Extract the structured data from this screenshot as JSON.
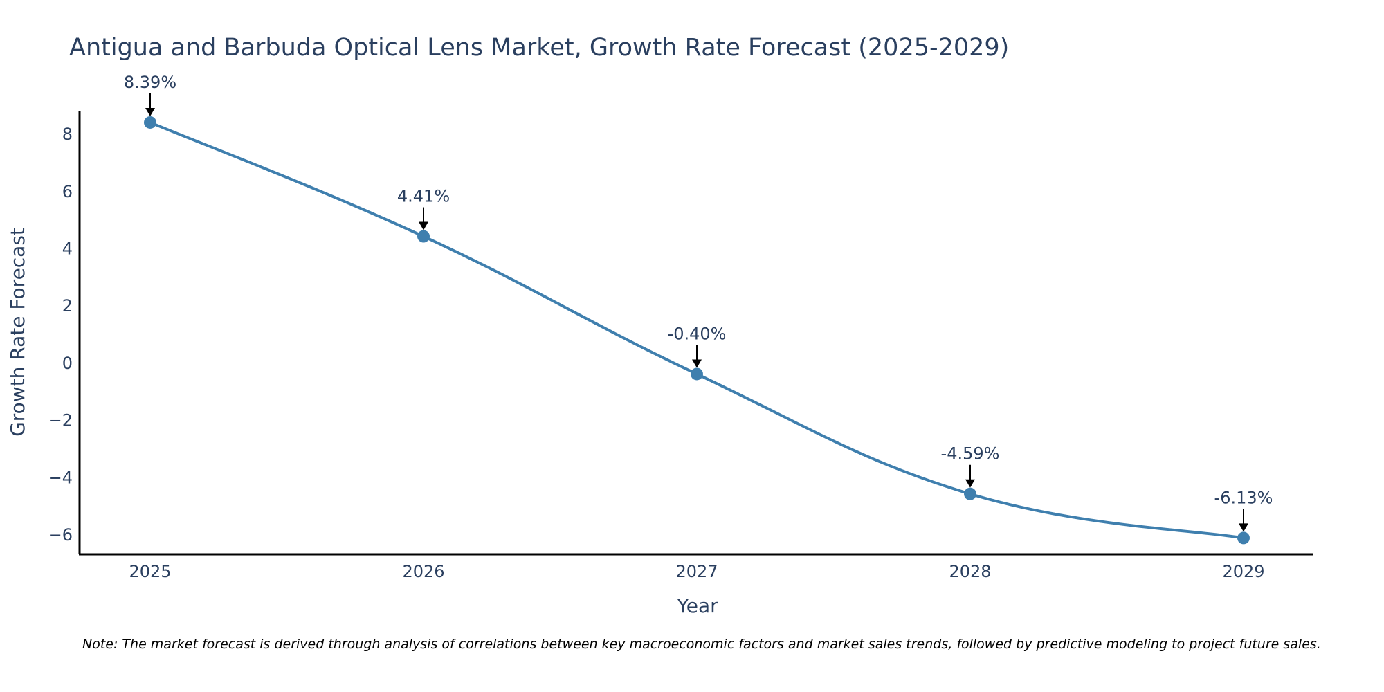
{
  "chart_data": {
    "type": "line",
    "title": "Antigua and Barbuda Optical Lens Market, Growth Rate Forecast (2025-2029)",
    "xlabel": "Year",
    "ylabel": "Growth Rate Forecast",
    "categories": [
      "2025",
      "2026",
      "2027",
      "2028",
      "2029"
    ],
    "series": [
      {
        "name": "Growth Rate Forecast",
        "values": [
          8.39,
          4.41,
          -0.4,
          -4.59,
          -6.13
        ]
      }
    ],
    "data_labels": [
      "8.39%",
      "4.41%",
      "-0.40%",
      "-4.59%",
      "-6.13%"
    ],
    "y_ticks": [
      8,
      6,
      4,
      2,
      0,
      -2,
      -4,
      -6
    ],
    "y_tick_labels": [
      "8",
      "6",
      "4",
      "2",
      "0",
      "−2",
      "−4",
      "−6"
    ],
    "ylim": [
      -6.7,
      8.8
    ],
    "grid": false,
    "line_color": "#3f7fae",
    "marker_color": "#3f7fae",
    "arrow_color": "#000000"
  },
  "note": "Note: The market forecast is derived through analysis of correlations between key macroeconomic factors and market sales trends, followed by predictive modeling to project future sales."
}
